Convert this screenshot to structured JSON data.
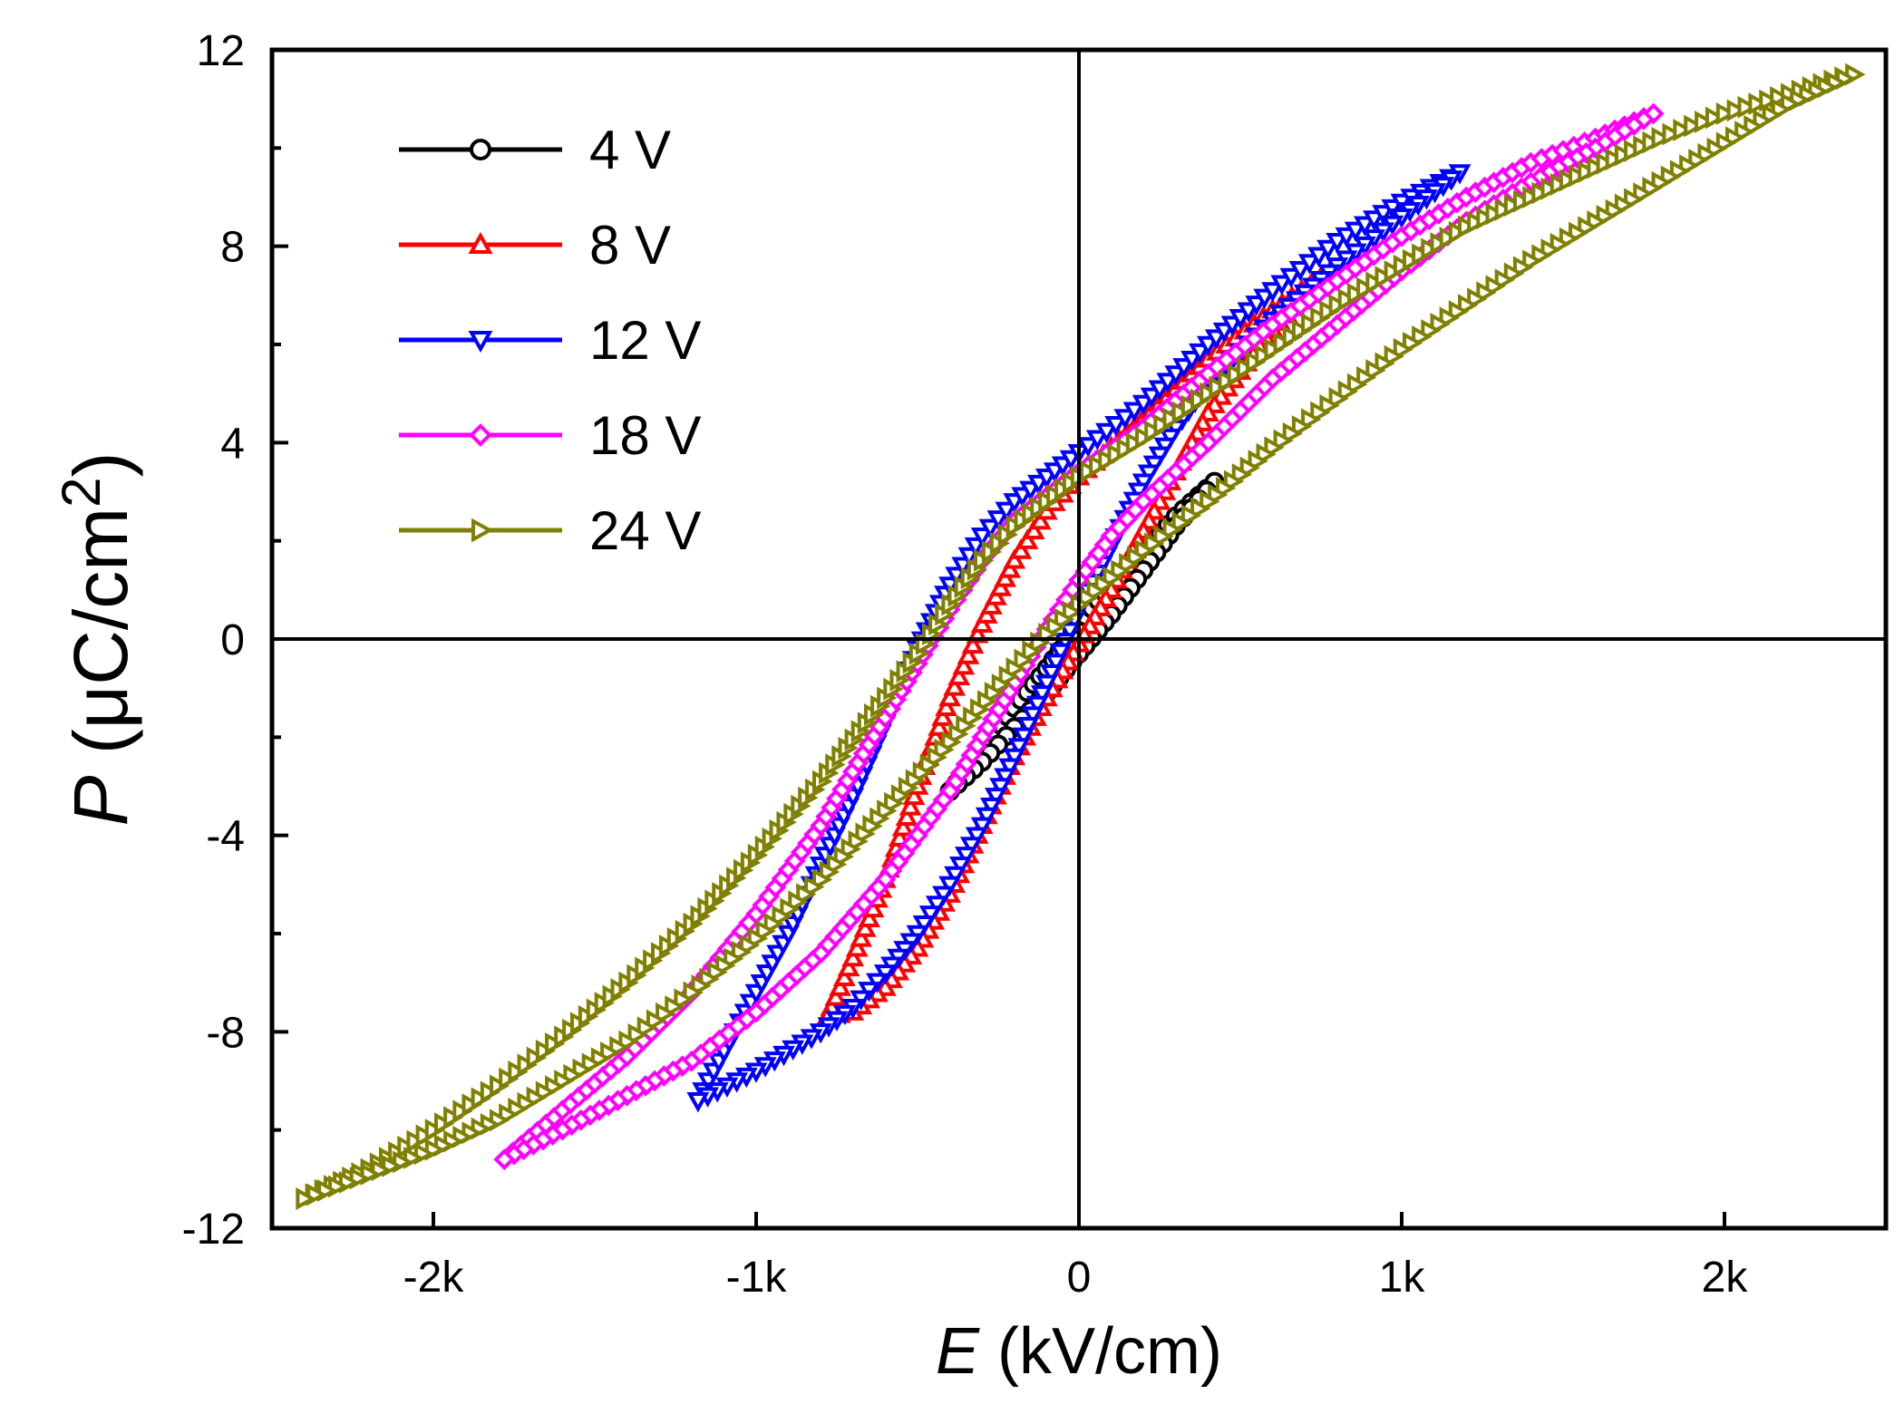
{
  "chart_data": {
    "type": "line",
    "title": "",
    "xlabel": {
      "symbol": "E",
      "unit": " (kV/cm)"
    },
    "ylabel": {
      "symbol": "P",
      "unit": " (μC/cm",
      "sup": "2",
      "close": ")"
    },
    "xlim": [
      -2500,
      2500
    ],
    "ylim": [
      -12,
      12
    ],
    "xticks": [
      {
        "value": -2000,
        "label": "-2k"
      },
      {
        "value": -1000,
        "label": "-1k"
      },
      {
        "value": 0,
        "label": "0"
      },
      {
        "value": 1000,
        "label": "1k"
      },
      {
        "value": 2000,
        "label": "2k"
      }
    ],
    "yticks": [
      {
        "value": -12,
        "label": "-12"
      },
      {
        "value": -8,
        "label": "-8"
      },
      {
        "value": -4,
        "label": "-4"
      },
      {
        "value": 0,
        "label": "0"
      },
      {
        "value": 4,
        "label": "4"
      },
      {
        "value": 8,
        "label": "8"
      },
      {
        "value": 12,
        "label": "12"
      }
    ],
    "legend_position": "top-left",
    "series": [
      {
        "name": "4 V",
        "color": "#000000",
        "marker": "circle",
        "upper": [
          [
            -400,
            -3.1
          ],
          [
            -300,
            -2.3
          ],
          [
            -200,
            -1.4
          ],
          [
            -100,
            -0.6
          ],
          [
            0,
            0.3
          ],
          [
            100,
            1.1
          ],
          [
            200,
            1.8
          ],
          [
            300,
            2.5
          ],
          [
            420,
            3.2
          ]
        ],
        "lower": [
          [
            420,
            3.2
          ],
          [
            300,
            2.3
          ],
          [
            200,
            1.4
          ],
          [
            100,
            0.5
          ],
          [
            0,
            -0.3
          ],
          [
            -100,
            -1.1
          ],
          [
            -200,
            -1.8
          ],
          [
            -300,
            -2.5
          ],
          [
            -400,
            -3.1
          ]
        ]
      },
      {
        "name": "8 V",
        "color": "#ff0000",
        "marker": "triangle-up",
        "upper": [
          [
            -780,
            -7.7
          ],
          [
            -700,
            -6.5
          ],
          [
            -600,
            -4.9
          ],
          [
            -500,
            -3.0
          ],
          [
            -400,
            -1.2
          ],
          [
            -300,
            0.3
          ],
          [
            -200,
            1.6
          ],
          [
            -100,
            2.6
          ],
          [
            0,
            3.3
          ],
          [
            100,
            3.9
          ],
          [
            200,
            4.5
          ],
          [
            400,
            5.7
          ],
          [
            600,
            6.7
          ],
          [
            780,
            7.5
          ]
        ],
        "lower": [
          [
            780,
            7.5
          ],
          [
            600,
            6.3
          ],
          [
            400,
            4.6
          ],
          [
            300,
            3.4
          ],
          [
            200,
            2.2
          ],
          [
            100,
            1.0
          ],
          [
            0,
            -0.1
          ],
          [
            -100,
            -1.2
          ],
          [
            -200,
            -2.4
          ],
          [
            -300,
            -3.8
          ],
          [
            -400,
            -5.2
          ],
          [
            -500,
            -6.3
          ],
          [
            -600,
            -7.1
          ],
          [
            -700,
            -7.6
          ],
          [
            -780,
            -7.7
          ]
        ]
      },
      {
        "name": "12 V",
        "color": "#0000ff",
        "marker": "triangle-down",
        "upper": [
          [
            -1180,
            -9.4
          ],
          [
            -1100,
            -8.4
          ],
          [
            -1000,
            -7.2
          ],
          [
            -900,
            -6.0
          ],
          [
            -800,
            -4.6
          ],
          [
            -700,
            -3.2
          ],
          [
            -600,
            -1.7
          ],
          [
            -500,
            -0.2
          ],
          [
            -400,
            1.1
          ],
          [
            -300,
            2.1
          ],
          [
            -200,
            2.8
          ],
          [
            -100,
            3.3
          ],
          [
            0,
            3.8
          ],
          [
            200,
            4.8
          ],
          [
            400,
            6.0
          ],
          [
            600,
            7.1
          ],
          [
            800,
            8.1
          ],
          [
            1000,
            8.9
          ],
          [
            1180,
            9.5
          ]
        ],
        "lower": [
          [
            1180,
            9.5
          ],
          [
            1000,
            8.6
          ],
          [
            800,
            7.6
          ],
          [
            600,
            6.5
          ],
          [
            400,
            5.2
          ],
          [
            300,
            4.3
          ],
          [
            200,
            3.2
          ],
          [
            100,
            1.9
          ],
          [
            0,
            0.6
          ],
          [
            -100,
            -0.9
          ],
          [
            -200,
            -2.4
          ],
          [
            -300,
            -3.8
          ],
          [
            -400,
            -5.0
          ],
          [
            -500,
            -6.0
          ],
          [
            -600,
            -6.8
          ],
          [
            -700,
            -7.5
          ],
          [
            -800,
            -8.0
          ],
          [
            -1000,
            -8.8
          ],
          [
            -1180,
            -9.4
          ]
        ]
      },
      {
        "name": "18 V",
        "color": "#ff00ff",
        "marker": "diamond",
        "upper": [
          [
            -1780,
            -10.6
          ],
          [
            -1600,
            -9.6
          ],
          [
            -1400,
            -8.5
          ],
          [
            -1200,
            -7.2
          ],
          [
            -1000,
            -5.6
          ],
          [
            -800,
            -3.8
          ],
          [
            -600,
            -1.6
          ],
          [
            -500,
            -0.5
          ],
          [
            -400,
            0.6
          ],
          [
            -300,
            1.6
          ],
          [
            -200,
            2.4
          ],
          [
            -100,
            2.9
          ],
          [
            0,
            3.4
          ],
          [
            200,
            4.3
          ],
          [
            400,
            5.4
          ],
          [
            600,
            6.4
          ],
          [
            800,
            7.3
          ],
          [
            1000,
            8.2
          ],
          [
            1200,
            9.0
          ],
          [
            1400,
            9.7
          ],
          [
            1600,
            10.2
          ],
          [
            1780,
            10.7
          ]
        ],
        "lower": [
          [
            1780,
            10.7
          ],
          [
            1600,
            10.0
          ],
          [
            1400,
            9.3
          ],
          [
            1200,
            8.5
          ],
          [
            1000,
            7.5
          ],
          [
            800,
            6.4
          ],
          [
            600,
            5.3
          ],
          [
            400,
            4.0
          ],
          [
            200,
            2.8
          ],
          [
            100,
            2.1
          ],
          [
            0,
            1.2
          ],
          [
            -100,
            0.2
          ],
          [
            -200,
            -0.9
          ],
          [
            -300,
            -2.0
          ],
          [
            -400,
            -3.1
          ],
          [
            -600,
            -4.9
          ],
          [
            -800,
            -6.4
          ],
          [
            -1000,
            -7.6
          ],
          [
            -1200,
            -8.6
          ],
          [
            -1400,
            -9.3
          ],
          [
            -1600,
            -10.0
          ],
          [
            -1780,
            -10.6
          ]
        ]
      },
      {
        "name": "24 V",
        "color": "#808000",
        "marker": "triangle-right",
        "upper": [
          [
            -2400,
            -11.4
          ],
          [
            -2200,
            -10.8
          ],
          [
            -2000,
            -10.0
          ],
          [
            -1800,
            -9.1
          ],
          [
            -1600,
            -8.1
          ],
          [
            -1400,
            -7.0
          ],
          [
            -1200,
            -5.8
          ],
          [
            -1000,
            -4.4
          ],
          [
            -800,
            -2.9
          ],
          [
            -600,
            -1.2
          ],
          [
            -500,
            -0.3
          ],
          [
            -400,
            0.7
          ],
          [
            -300,
            1.6
          ],
          [
            -200,
            2.3
          ],
          [
            -100,
            2.8
          ],
          [
            0,
            3.3
          ],
          [
            200,
            4.1
          ],
          [
            400,
            5.0
          ],
          [
            600,
            5.9
          ],
          [
            800,
            6.8
          ],
          [
            1000,
            7.6
          ],
          [
            1200,
            8.4
          ],
          [
            1400,
            9.0
          ],
          [
            1600,
            9.6
          ],
          [
            1800,
            10.2
          ],
          [
            2000,
            10.7
          ],
          [
            2200,
            11.1
          ],
          [
            2400,
            11.5
          ]
        ],
        "lower": [
          [
            2400,
            11.5
          ],
          [
            2200,
            10.9
          ],
          [
            2000,
            10.1
          ],
          [
            1800,
            9.3
          ],
          [
            1600,
            8.5
          ],
          [
            1400,
            7.7
          ],
          [
            1200,
            6.8
          ],
          [
            1000,
            5.9
          ],
          [
            800,
            4.9
          ],
          [
            600,
            3.9
          ],
          [
            400,
            2.8
          ],
          [
            200,
            1.8
          ],
          [
            0,
            0.7
          ],
          [
            -100,
            0.1
          ],
          [
            -200,
            -0.6
          ],
          [
            -400,
            -2.1
          ],
          [
            -600,
            -3.5
          ],
          [
            -800,
            -4.9
          ],
          [
            -1000,
            -6.1
          ],
          [
            -1200,
            -7.2
          ],
          [
            -1400,
            -8.2
          ],
          [
            -1600,
            -9.0
          ],
          [
            -1800,
            -9.8
          ],
          [
            -2000,
            -10.4
          ],
          [
            -2200,
            -10.9
          ],
          [
            -2400,
            -11.4
          ]
        ]
      }
    ]
  }
}
